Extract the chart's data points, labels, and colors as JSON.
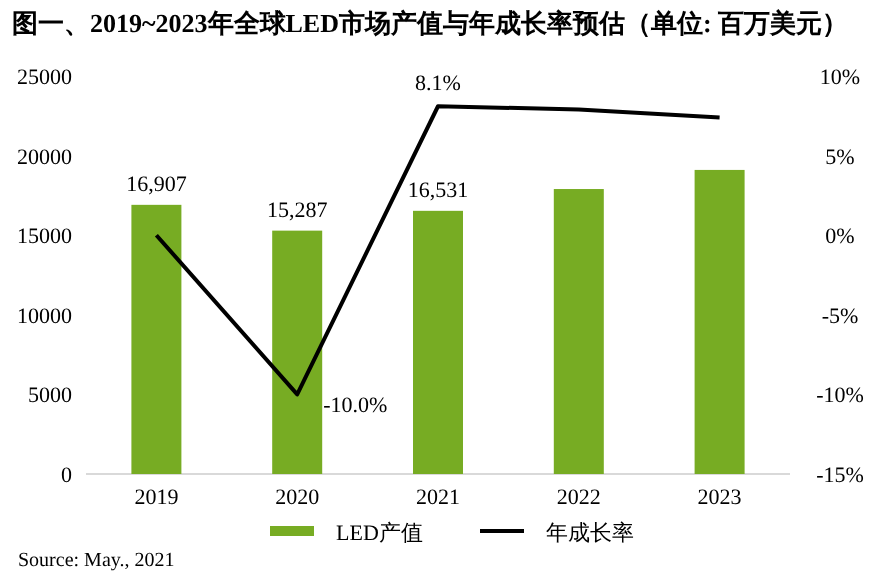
{
  "chart_data": {
    "type": "bar",
    "title": "图一、2019~2023年全球LED市场产值与年成长率预估（单位: 百万美元）",
    "categories": [
      "2019",
      "2020",
      "2021",
      "2022",
      "2023"
    ],
    "series": [
      {
        "name": "LED产值",
        "color": "#77ac23",
        "values": [
          16907,
          15287,
          16531,
          17900,
          19100
        ],
        "value_labels": [
          "16,907",
          "15,287",
          "16,531",
          null,
          null
        ]
      },
      {
        "name": "年成长率",
        "type": "line",
        "axis": "y2",
        "color": "#000000",
        "values": [
          0,
          -10.0,
          8.1,
          7.9,
          7.4
        ],
        "value_labels": [
          null,
          "-10.0%",
          "8.1%",
          null,
          null
        ]
      }
    ],
    "ylim": [
      0,
      25000
    ],
    "yticks": [
      0,
      5000,
      10000,
      15000,
      20000,
      25000
    ],
    "y2lim": [
      -15,
      10
    ],
    "y2ticks": [
      {
        "value": -15,
        "label": "-15%"
      },
      {
        "value": -10,
        "label": "-10%"
      },
      {
        "value": -5,
        "label": "-5%"
      },
      {
        "value": 0,
        "label": "0%"
      },
      {
        "value": 5,
        "label": "5%"
      },
      {
        "value": 10,
        "label": "10%"
      }
    ],
    "legend": "bottom",
    "grid": false,
    "annotations": [
      "Source: May., 2021"
    ]
  }
}
